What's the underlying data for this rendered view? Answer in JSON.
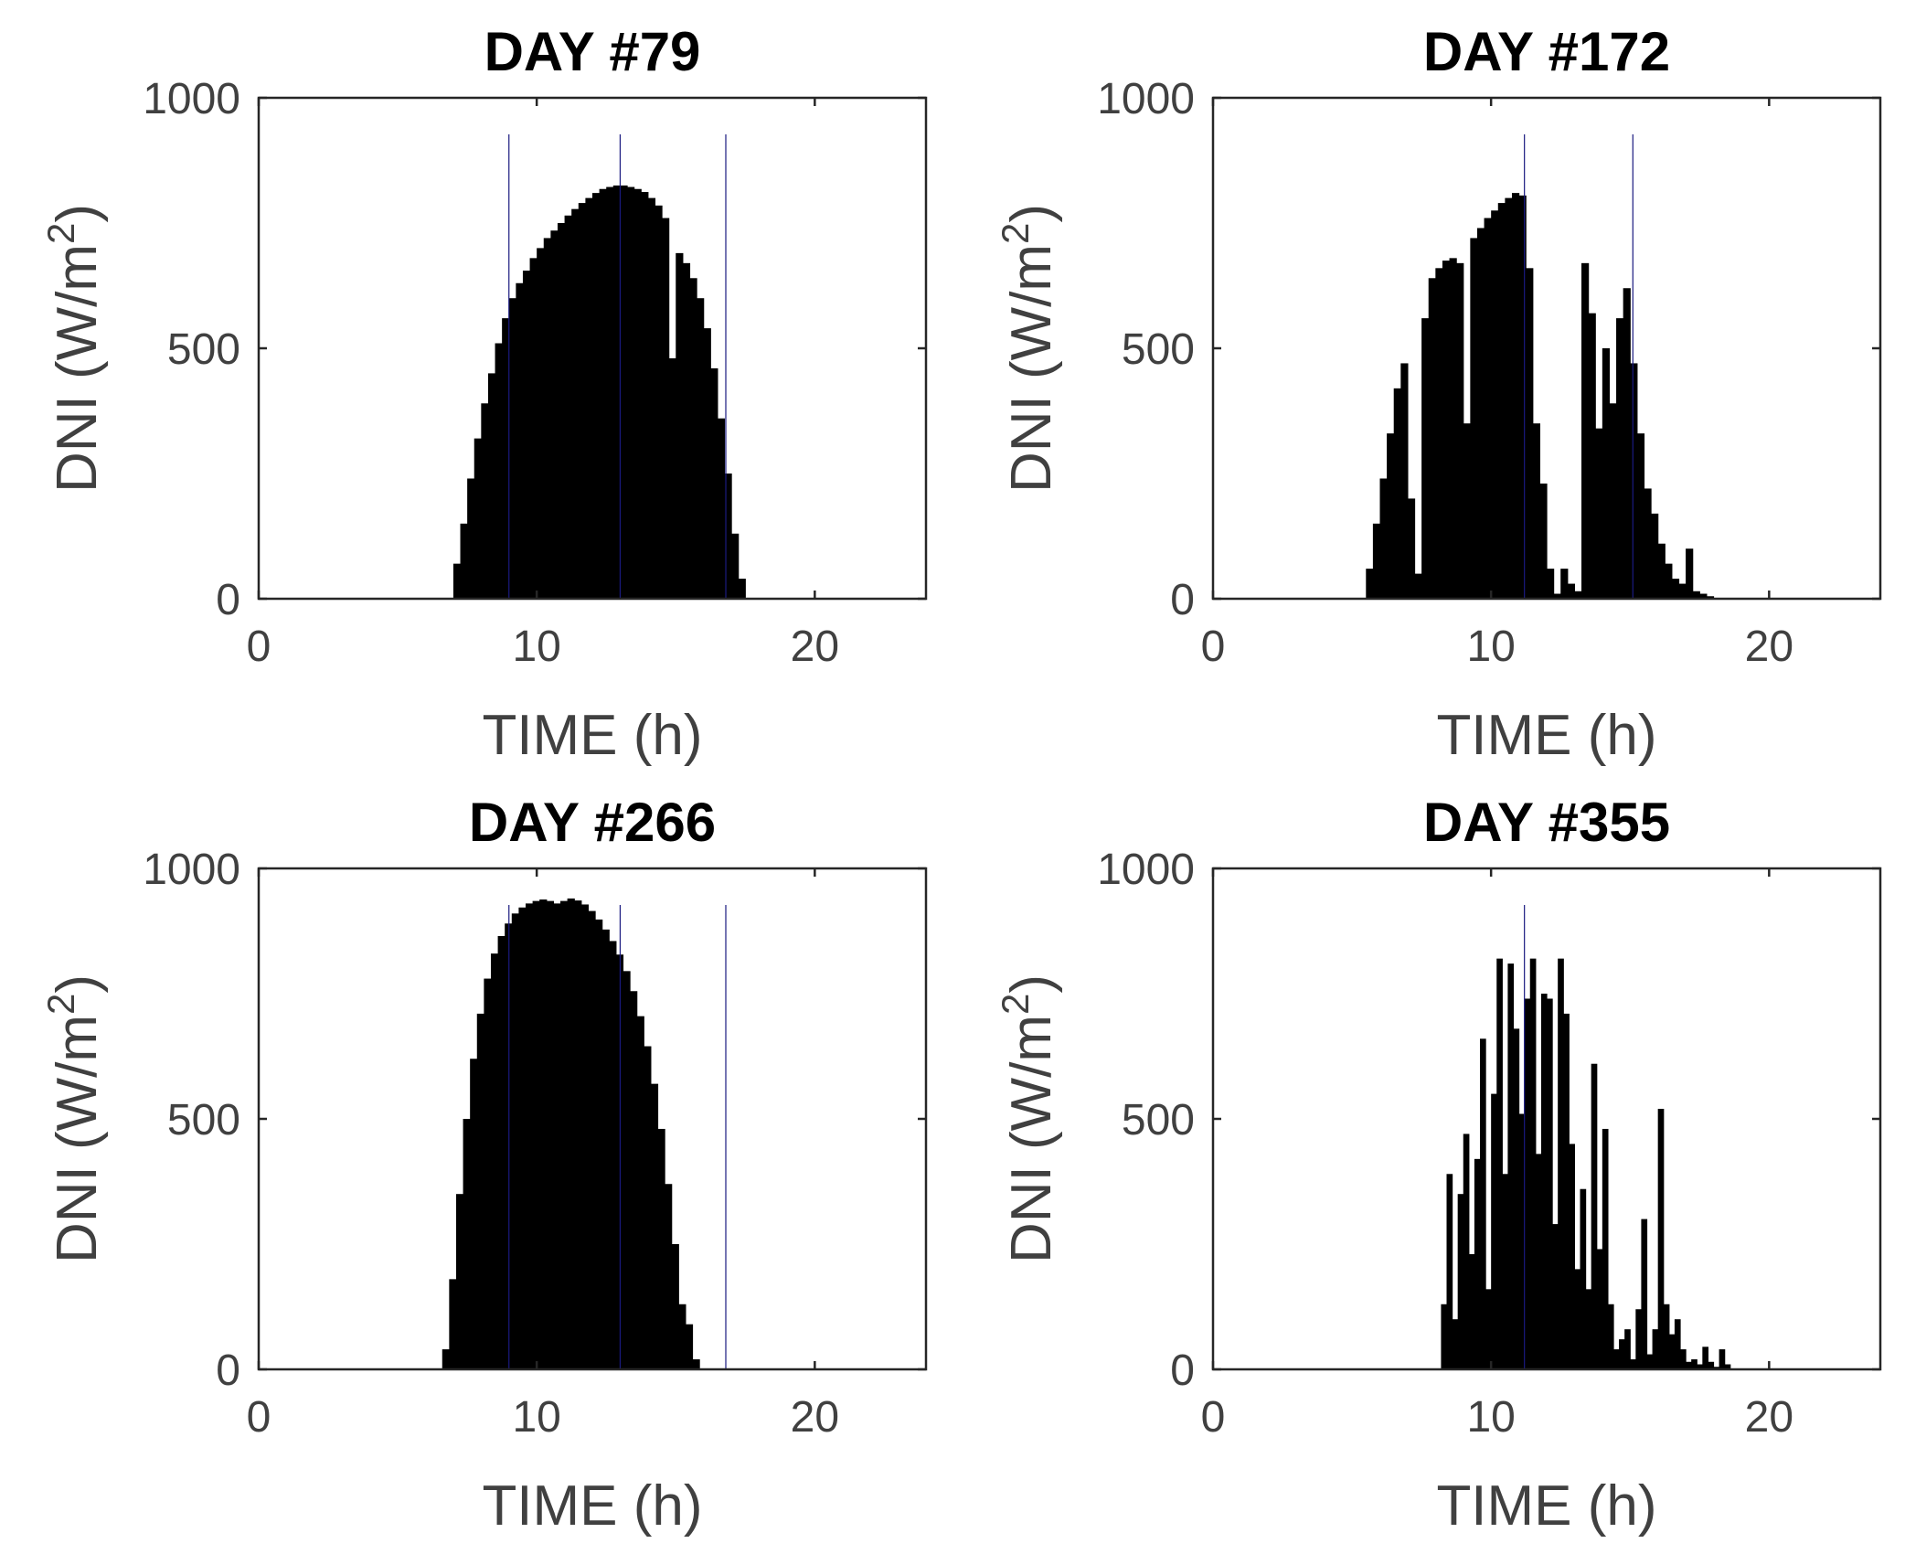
{
  "figure": {
    "colors": {
      "bar": "#000000",
      "axis": "#262626",
      "tick_text": "#404040",
      "title": "#000000",
      "marker_line": "#1a1a80"
    }
  },
  "chart_data": [
    {
      "type": "bar",
      "title": "DAY #79",
      "xlabel": "TIME (h)",
      "ylabel": "DNI (W/m",
      "ylabel_sup": "2",
      "ylabel_close": ")",
      "xlim": [
        0,
        24
      ],
      "ylim": [
        0,
        1000
      ],
      "xticks": [
        0,
        10,
        20
      ],
      "yticks": [
        0,
        500,
        1000
      ],
      "xtick_labels": [
        "0",
        "10",
        "20"
      ],
      "ytick_labels": [
        "0",
        "500",
        "1000"
      ],
      "bar_width_h": 0.25,
      "x_start": 7.0,
      "values": [
        70,
        150,
        240,
        320,
        390,
        450,
        510,
        560,
        600,
        630,
        655,
        680,
        700,
        720,
        735,
        750,
        765,
        778,
        790,
        800,
        810,
        818,
        822,
        825,
        825,
        822,
        818,
        812,
        800,
        785,
        760,
        480,
        690,
        670,
        640,
        600,
        540,
        460,
        360,
        250,
        130,
        40
      ],
      "marker_lines_x": [
        9,
        13,
        16.8
      ]
    },
    {
      "type": "bar",
      "title": "DAY #172",
      "xlabel": "TIME (h)",
      "ylabel": "DNI (W/m",
      "ylabel_sup": "2",
      "ylabel_close": ")",
      "xlim": [
        0,
        24
      ],
      "ylim": [
        0,
        1000
      ],
      "xticks": [
        0,
        10,
        20
      ],
      "yticks": [
        0,
        500,
        1000
      ],
      "xtick_labels": [
        "0",
        "10",
        "20"
      ],
      "ytick_labels": [
        "0",
        "500",
        "1000"
      ],
      "bar_width_h": 0.25,
      "x_start": 5.5,
      "values": [
        60,
        150,
        240,
        330,
        420,
        470,
        200,
        50,
        560,
        640,
        660,
        675,
        680,
        670,
        350,
        720,
        740,
        760,
        775,
        790,
        800,
        810,
        805,
        660,
        350,
        230,
        60,
        10,
        60,
        30,
        15,
        670,
        570,
        340,
        500,
        390,
        560,
        620,
        470,
        330,
        220,
        170,
        110,
        70,
        40,
        30,
        100,
        15,
        10,
        5
      ],
      "marker_lines_x": [
        11.2,
        15.1
      ]
    },
    {
      "type": "bar",
      "title": "DAY #266",
      "xlabel": "TIME (h)",
      "ylabel": "DNI (W/m",
      "ylabel_sup": "2",
      "ylabel_close": ")",
      "xlim": [
        0,
        24
      ],
      "ylim": [
        0,
        1000
      ],
      "xticks": [
        0,
        10,
        20
      ],
      "yticks": [
        0,
        500,
        1000
      ],
      "xtick_labels": [
        "0",
        "10",
        "20"
      ],
      "ytick_labels": [
        "0",
        "500",
        "1000"
      ],
      "bar_width_h": 0.25,
      "x_start": 6.6,
      "values": [
        40,
        180,
        350,
        500,
        620,
        710,
        780,
        830,
        865,
        890,
        910,
        922,
        930,
        935,
        938,
        935,
        930,
        935,
        940,
        936,
        928,
        915,
        898,
        878,
        855,
        828,
        795,
        755,
        705,
        645,
        570,
        480,
        370,
        250,
        130,
        90,
        20
      ],
      "marker_lines_x": [
        9,
        13,
        16.8
      ]
    },
    {
      "type": "bar",
      "title": "DAY #355",
      "xlabel": "TIME (h)",
      "ylabel": "DNI (W/m",
      "ylabel_sup": "2",
      "ylabel_close": ")",
      "xlim": [
        0,
        24
      ],
      "ylim": [
        0,
        1000
      ],
      "xticks": [
        0,
        10,
        20
      ],
      "yticks": [
        0,
        500,
        1000
      ],
      "xtick_labels": [
        "0",
        "10",
        "20"
      ],
      "ytick_labels": [
        "0",
        "500",
        "1000"
      ],
      "bar_width_h": 0.2,
      "x_start": 8.2,
      "values": [
        130,
        390,
        100,
        350,
        470,
        230,
        420,
        660,
        160,
        550,
        820,
        390,
        810,
        680,
        510,
        740,
        820,
        430,
        750,
        740,
        290,
        820,
        710,
        450,
        200,
        360,
        160,
        610,
        240,
        480,
        130,
        40,
        60,
        80,
        20,
        120,
        300,
        30,
        80,
        520,
        130,
        70,
        100,
        40,
        15,
        20,
        10,
        45,
        15,
        5,
        40,
        10
      ],
      "marker_lines_x": [
        11.2
      ]
    }
  ]
}
